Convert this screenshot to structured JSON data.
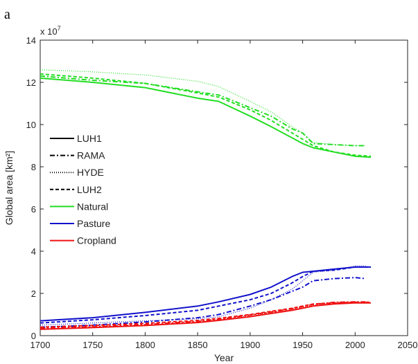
{
  "panel_label": "a",
  "chart_data": {
    "type": "line",
    "xlabel": "Year",
    "ylabel": "Global area [km²]",
    "y_multiplier": "x 10",
    "y_multiplier_exp": "7",
    "xlim": [
      1700,
      2050
    ],
    "ylim": [
      0,
      14
    ],
    "xticks": [
      1700,
      1750,
      1800,
      1850,
      1900,
      1950,
      2000,
      2050
    ],
    "yticks": [
      0,
      2,
      4,
      6,
      8,
      10,
      12,
      14
    ],
    "grid": false,
    "legend_position": "center-left",
    "legend": [
      {
        "name": "LUH1",
        "color": "#000000",
        "style": "solid"
      },
      {
        "name": "RAMA",
        "color": "#000000",
        "style": "dashdot"
      },
      {
        "name": "HYDE",
        "color": "#000000",
        "style": "dotted"
      },
      {
        "name": "LUH2",
        "color": "#000000",
        "style": "dashed"
      },
      {
        "name": "Natural",
        "color": "#22dd22",
        "style": "solid"
      },
      {
        "name": "Pasture",
        "color": "#1111cc",
        "style": "solid"
      },
      {
        "name": "Cropland",
        "color": "#ee1111",
        "style": "solid"
      }
    ],
    "series": [
      {
        "category": "Natural",
        "dataset": "LUH1",
        "color": "#22dd22",
        "style": "solid",
        "x": [
          1700,
          1750,
          1800,
          1850,
          1870,
          1900,
          1920,
          1950,
          1960,
          1980,
          2000,
          2015
        ],
        "y": [
          12.2,
          12.0,
          11.75,
          11.25,
          11.1,
          10.4,
          9.9,
          9.1,
          8.9,
          8.7,
          8.5,
          8.45
        ]
      },
      {
        "category": "Natural",
        "dataset": "RAMA",
        "color": "#22dd22",
        "style": "dashdot",
        "x": [
          1700,
          1750,
          1800,
          1850,
          1870,
          1900,
          1920,
          1940,
          1950,
          1960,
          1980,
          2000,
          2010
        ],
        "y": [
          12.3,
          12.1,
          11.95,
          11.55,
          11.4,
          10.8,
          10.4,
          9.8,
          9.6,
          9.1,
          9.05,
          9.0,
          9.0
        ]
      },
      {
        "category": "Natural",
        "dataset": "HYDE",
        "color": "#22dd22",
        "style": "dotted",
        "x": [
          1700,
          1750,
          1800,
          1850,
          1870,
          1900,
          1920,
          1940,
          1950,
          1960,
          1980,
          2000,
          2010
        ],
        "y": [
          12.6,
          12.5,
          12.35,
          12.05,
          11.8,
          11.1,
          10.6,
          9.9,
          9.6,
          9.15,
          9.05,
          9.0,
          9.0
        ]
      },
      {
        "category": "Natural",
        "dataset": "LUH2",
        "color": "#22dd22",
        "style": "dashed",
        "x": [
          1700,
          1750,
          1800,
          1850,
          1870,
          1900,
          1920,
          1950,
          1960,
          1980,
          2000,
          2015
        ],
        "y": [
          12.4,
          12.2,
          11.95,
          11.5,
          11.3,
          10.7,
          10.2,
          9.3,
          9.0,
          8.7,
          8.55,
          8.5
        ]
      },
      {
        "category": "Pasture",
        "dataset": "LUH1",
        "color": "#1111cc",
        "style": "solid",
        "x": [
          1700,
          1750,
          1800,
          1850,
          1870,
          1900,
          1920,
          1940,
          1950,
          1960,
          1980,
          2000,
          2015
        ],
        "y": [
          0.7,
          0.85,
          1.1,
          1.4,
          1.6,
          1.95,
          2.3,
          2.8,
          3.0,
          3.05,
          3.15,
          3.25,
          3.25
        ]
      },
      {
        "category": "Pasture",
        "dataset": "RAMA",
        "color": "#1111cc",
        "style": "dashdot",
        "x": [
          1700,
          1750,
          1800,
          1850,
          1870,
          1900,
          1920,
          1940,
          1950,
          1960,
          1980,
          2000,
          2010
        ],
        "y": [
          0.4,
          0.5,
          0.65,
          0.85,
          1.0,
          1.4,
          1.7,
          2.1,
          2.3,
          2.6,
          2.7,
          2.75,
          2.7
        ]
      },
      {
        "category": "Pasture",
        "dataset": "HYDE",
        "color": "#1111cc",
        "style": "dotted",
        "x": [
          1700,
          1750,
          1800,
          1850,
          1870,
          1900,
          1920,
          1940,
          1950,
          1960,
          1980,
          2000,
          2010
        ],
        "y": [
          0.5,
          0.6,
          0.7,
          0.8,
          0.9,
          1.3,
          1.7,
          2.2,
          2.6,
          3.0,
          3.1,
          3.3,
          3.3
        ]
      },
      {
        "category": "Pasture",
        "dataset": "LUH2",
        "color": "#1111cc",
        "style": "dashed",
        "x": [
          1700,
          1750,
          1800,
          1850,
          1870,
          1900,
          1920,
          1940,
          1950,
          1960,
          1980,
          2000,
          2015
        ],
        "y": [
          0.6,
          0.75,
          0.95,
          1.2,
          1.4,
          1.7,
          2.0,
          2.5,
          2.8,
          3.05,
          3.1,
          3.25,
          3.25
        ]
      },
      {
        "category": "Cropland",
        "dataset": "LUH1",
        "color": "#ee1111",
        "style": "solid",
        "x": [
          1700,
          1750,
          1800,
          1850,
          1870,
          1900,
          1920,
          1940,
          1950,
          1960,
          1980,
          2000,
          2015
        ],
        "y": [
          0.3,
          0.38,
          0.48,
          0.62,
          0.72,
          0.9,
          1.05,
          1.2,
          1.3,
          1.4,
          1.5,
          1.55,
          1.55
        ]
      },
      {
        "category": "Cropland",
        "dataset": "RAMA",
        "color": "#ee1111",
        "style": "dashdot",
        "x": [
          1700,
          1750,
          1800,
          1850,
          1870,
          1900,
          1920,
          1940,
          1950,
          1960,
          1980,
          2000,
          2010
        ],
        "y": [
          0.35,
          0.42,
          0.52,
          0.68,
          0.78,
          0.98,
          1.12,
          1.28,
          1.38,
          1.48,
          1.58,
          1.6,
          1.6
        ]
      },
      {
        "category": "Cropland",
        "dataset": "HYDE",
        "color": "#ee1111",
        "style": "dotted",
        "x": [
          1700,
          1750,
          1800,
          1850,
          1870,
          1900,
          1920,
          1940,
          1950,
          1960,
          1980,
          2000,
          2010
        ],
        "y": [
          0.32,
          0.4,
          0.5,
          0.65,
          0.75,
          0.95,
          1.1,
          1.25,
          1.35,
          1.45,
          1.55,
          1.58,
          1.58
        ]
      },
      {
        "category": "Cropland",
        "dataset": "LUH2",
        "color": "#ee1111",
        "style": "dashed",
        "x": [
          1700,
          1750,
          1800,
          1850,
          1870,
          1900,
          1920,
          1940,
          1950,
          1960,
          1980,
          2000,
          2015
        ],
        "y": [
          0.4,
          0.48,
          0.58,
          0.72,
          0.82,
          1.0,
          1.15,
          1.3,
          1.4,
          1.5,
          1.55,
          1.58,
          1.58
        ]
      }
    ]
  }
}
